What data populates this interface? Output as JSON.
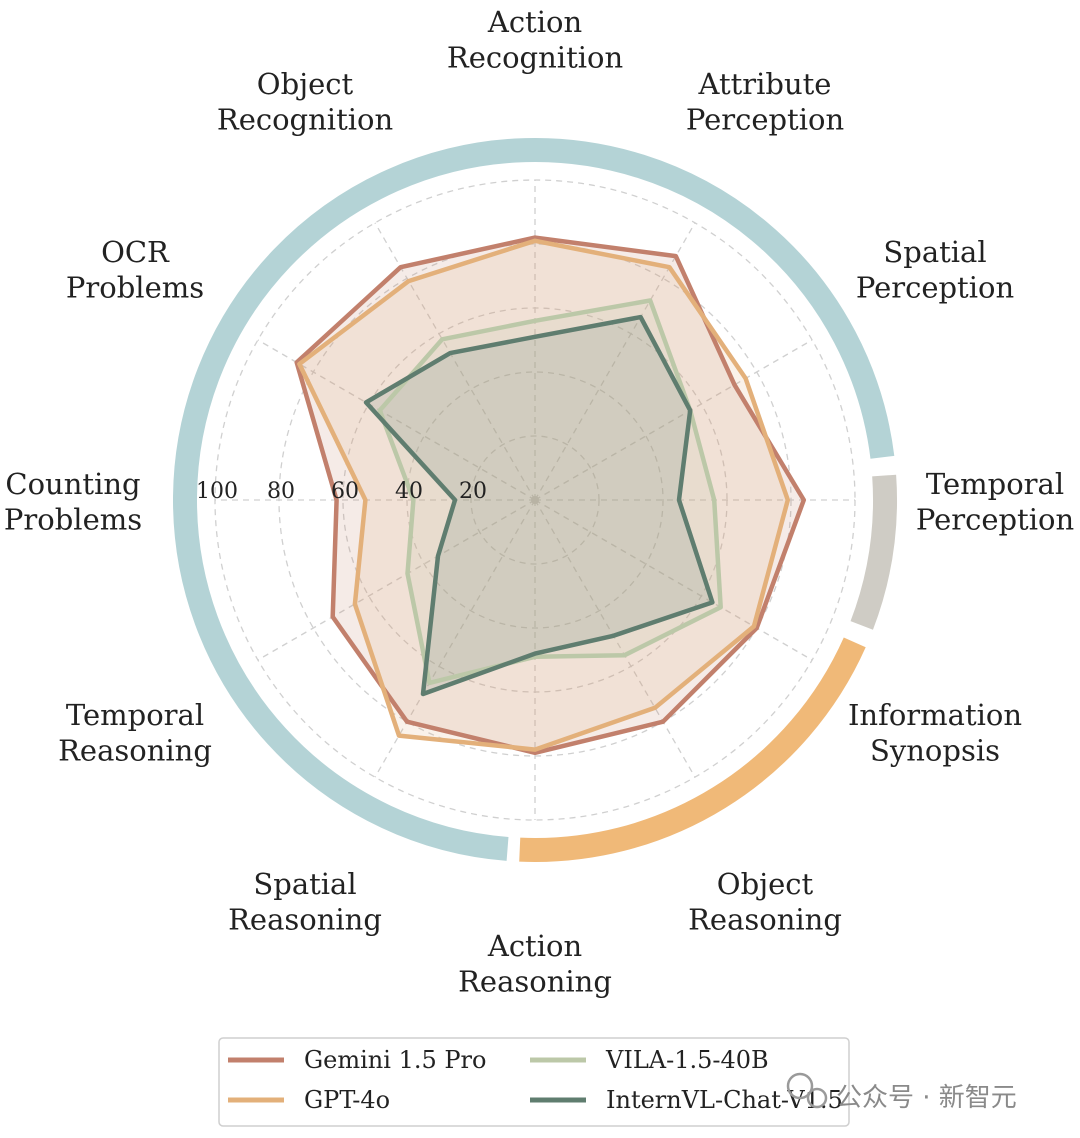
{
  "chart_data": {
    "type": "radar",
    "title": "",
    "categories": [
      "Action Recognition",
      "Attribute Perception",
      "Spatial Perception",
      "Temporal Perception",
      "Information Synopsis",
      "Object Reasoning",
      "Action Reasoning",
      "Spatial Reasoning",
      "Temporal Reasoning",
      "Counting Problems",
      "OCR Problems",
      "Object Recognition"
    ],
    "category_lines": [
      [
        "Action",
        "Recognition"
      ],
      [
        "Attribute",
        "Perception"
      ],
      [
        "Spatial",
        "Perception"
      ],
      [
        "Temporal",
        "Perception"
      ],
      [
        "Information",
        "Synopsis"
      ],
      [
        "Object",
        "Reasoning"
      ],
      [
        "Action",
        "Reasoning"
      ],
      [
        "Spatial",
        "Reasoning"
      ],
      [
        "Temporal",
        "Reasoning"
      ],
      [
        "Counting",
        "Problems"
      ],
      [
        "OCR",
        "Problems"
      ],
      [
        "Object",
        "Recognition"
      ]
    ],
    "rlim": [
      0,
      100
    ],
    "r_ticks": [
      20,
      40,
      60,
      80,
      100
    ],
    "r_tick_labels": [
      "20",
      "40",
      "60",
      "80",
      "100"
    ],
    "grid": true,
    "series": [
      {
        "name": "Gemini 1.5 Pro",
        "color": "#c2806c",
        "values": [
          82,
          88,
          72,
          84,
          80,
          80,
          79,
          80,
          73,
          62,
          86,
          84
        ]
      },
      {
        "name": "GPT-4o",
        "color": "#e3b07a",
        "values": [
          81,
          84,
          76,
          79,
          79,
          75,
          78,
          85,
          65,
          53,
          85,
          79
        ]
      },
      {
        "name": "VILA-1.5-40B",
        "color": "#bcc8a8",
        "values": [
          56,
          72,
          56,
          56,
          67,
          56,
          49,
          66,
          46,
          38,
          56,
          58
        ]
      },
      {
        "name": "InternVL-Chat-V1.5",
        "color": "#5f7d6f",
        "values": [
          51,
          66,
          56,
          45,
          64,
          49,
          48,
          70,
          35,
          25,
          61,
          53
        ]
      }
    ],
    "category_groups": [
      {
        "name": "Perception",
        "color": "#b4d3d6"
      },
      {
        "name": "Synopsis",
        "color": "#cfccc5"
      },
      {
        "name": "Reasoning",
        "color": "#f0b978"
      }
    ],
    "legend": {
      "position": "bottom-center",
      "ncol": 2
    }
  },
  "watermark": {
    "text": "公众号 · 新智元",
    "icon": "wechat-icon",
    "color": "#8a8a8a"
  }
}
